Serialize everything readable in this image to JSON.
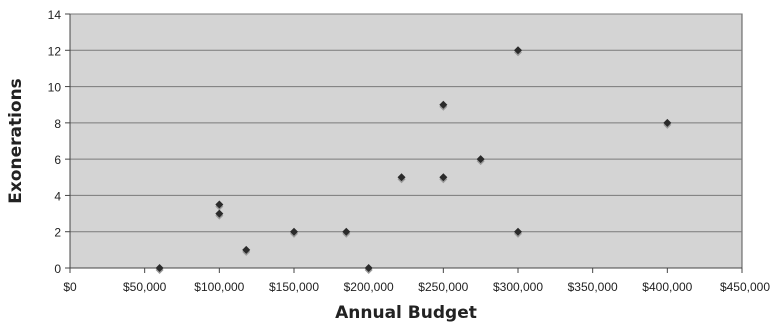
{
  "chart_data": {
    "type": "scatter",
    "title": "",
    "xlabel": "Annual Budget",
    "ylabel": "Exonerations",
    "xlim": [
      0,
      450000
    ],
    "ylim": [
      0,
      14
    ],
    "x_ticks": [
      0,
      50000,
      100000,
      150000,
      200000,
      250000,
      300000,
      350000,
      400000,
      450000
    ],
    "x_tick_labels": [
      "$0",
      "$50,000",
      "$100,000",
      "$150,000",
      "$200,000",
      "$250,000",
      "$300,000",
      "$350,000",
      "$400,000",
      "$450,000"
    ],
    "y_ticks": [
      0,
      2,
      4,
      6,
      8,
      10,
      12,
      14
    ],
    "y_tick_labels": [
      "0",
      "2",
      "4",
      "6",
      "8",
      "10",
      "12",
      "14"
    ],
    "grid": "horizontal",
    "legend": "none",
    "colors": {
      "plot_background": "#d4d4d4",
      "marker": "#2b2b2b",
      "marker_shadow": "#9a9a9a",
      "gridline": "#7a7a7a"
    },
    "series": [
      {
        "points": [
          {
            "x": 60000,
            "y": 0
          },
          {
            "x": 100000,
            "y": 3.5
          },
          {
            "x": 100000,
            "y": 3
          },
          {
            "x": 118000,
            "y": 1
          },
          {
            "x": 150000,
            "y": 2
          },
          {
            "x": 185000,
            "y": 2
          },
          {
            "x": 200000,
            "y": 0
          },
          {
            "x": 222000,
            "y": 5
          },
          {
            "x": 250000,
            "y": 9
          },
          {
            "x": 250000,
            "y": 5
          },
          {
            "x": 275000,
            "y": 6
          },
          {
            "x": 300000,
            "y": 12
          },
          {
            "x": 300000,
            "y": 2
          },
          {
            "x": 400000,
            "y": 8
          }
        ]
      }
    ]
  }
}
